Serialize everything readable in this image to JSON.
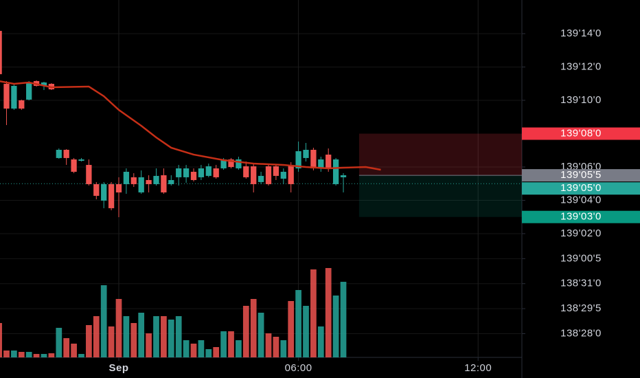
{
  "chart_data": {
    "type": "candlestick",
    "x": [
      -1,
      0,
      1,
      2,
      3,
      4,
      5,
      6,
      7,
      8,
      9,
      10,
      11,
      12,
      13,
      14,
      15,
      16,
      17,
      18,
      19,
      20,
      21,
      22,
      23,
      24,
      25,
      26,
      27,
      28,
      29,
      30,
      31,
      32,
      33,
      34,
      35,
      36,
      37,
      38,
      39,
      40,
      41,
      42,
      43,
      44,
      45
    ],
    "open": [
      139.4427,
      139.3434,
      139.297,
      139.3125,
      139.3138,
      139.3486,
      139.3396,
      139.3434,
      139.2043,
      139.2197,
      139.2017,
      139.1991,
      139.1914,
      139.1553,
      139.1244,
      139.1553,
      139.1553,
      139.1553,
      139.1682,
      139.1398,
      139.163,
      139.1553,
      139.172,
      139.1553,
      139.1682,
      139.1682,
      139.1785,
      139.1682,
      139.1708,
      139.1849,
      139.1849,
      139.2017,
      139.1849,
      139.1888,
      139.1888,
      139.1592,
      139.1888,
      139.1888,
      139.1656,
      139.1914,
      139.1849,
      139.2043,
      139.2197,
      139.1849,
      139.2107,
      139.1553,
      139.1682
    ],
    "high": [
      139.4491,
      139.3486,
      139.3434,
      139.3138,
      139.3486,
      139.3499,
      139.3473,
      139.3447,
      139.2223,
      139.221,
      139.2043,
      139.2043,
      139.2017,
      139.1592,
      139.1592,
      139.1592,
      139.1682,
      139.1849,
      139.1759,
      139.1811,
      139.172,
      139.1849,
      139.1849,
      139.172,
      139.1914,
      139.1914,
      139.1849,
      139.1914,
      139.1939,
      139.1914,
      139.2043,
      139.2043,
      139.2068,
      139.1978,
      139.1939,
      139.1785,
      139.1939,
      139.1914,
      139.1849,
      139.1965,
      139.2352,
      139.2326,
      139.2236,
      139.2068,
      139.2223,
      139.2043,
      139.1759
    ],
    "low": [
      139.3589,
      139.2661,
      139.2945,
      139.2945,
      139.3125,
      139.3383,
      139.3318,
      139.3318,
      139.203,
      139.1914,
      139.1759,
      139.1978,
      139.1527,
      139.1269,
      139.1102,
      139.1063,
      139.0934,
      139.1372,
      139.1501,
      139.1372,
      139.1398,
      139.1527,
      139.1372,
      139.1527,
      139.1527,
      139.1579,
      139.1604,
      139.163,
      139.1682,
      139.1656,
      139.1823,
      139.1849,
      139.1823,
      139.1656,
      139.1398,
      139.1553,
      139.1527,
      139.163,
      139.1553,
      139.1398,
      139.1785,
      139.1978,
      139.1811,
      139.1785,
      139.1785,
      139.1527,
      139.1398
    ],
    "close": [
      139.3615,
      139.297,
      139.3396,
      139.297,
      139.346,
      139.3396,
      139.346,
      139.3331,
      139.2197,
      139.2043,
      139.1785,
      139.2017,
      139.1553,
      139.1334,
      139.1553,
      139.1102,
      139.1398,
      139.1785,
      139.1553,
      139.1682,
      139.1553,
      139.1708,
      139.1398,
      139.163,
      139.1849,
      139.1849,
      139.163,
      139.1849,
      139.1888,
      139.1682,
      139.2017,
      139.1875,
      139.2017,
      139.1682,
      139.1553,
      139.1708,
      139.1553,
      139.1708,
      139.1785,
      139.1553,
      139.2171,
      139.2197,
      139.1849,
      139.2017,
      139.1849,
      139.2017,
      139.172
    ],
    "volume": [
      50,
      10,
      10,
      8,
      8,
      5,
      5,
      6,
      43,
      28,
      20,
      5,
      47,
      60,
      105,
      45,
      85,
      60,
      50,
      65,
      35,
      60,
      60,
      55,
      60,
      25,
      20,
      25,
      12,
      15,
      38,
      38,
      25,
      75,
      85,
      65,
      35,
      30,
      25,
      82,
      98,
      75,
      128,
      45,
      130,
      90,
      110
    ],
    "vlim": [
      0,
      140
    ],
    "up_color": "#26a69a",
    "down_color": "#ef5350",
    "moving_average": {
      "color": "#c62f17",
      "x": [
        -1,
        1,
        3,
        6,
        11,
        13,
        15,
        18,
        20,
        22,
        25,
        29,
        33,
        37,
        40,
        43,
        45,
        48,
        50
      ],
      "values": [
        139.3486,
        139.3434,
        139.346,
        139.337,
        139.3383,
        139.3202,
        139.2945,
        139.2648,
        139.2429,
        139.2236,
        139.2107,
        139.2004,
        139.1939,
        139.1914,
        139.1875,
        139.1849,
        139.1862,
        139.1875,
        139.1823
      ]
    },
    "position": {
      "start": 47.1,
      "stop_color": "#f23645",
      "target_color": "#089981",
      "entry_color": "#787b86",
      "entry": {
        "value": 139.171875,
        "label": "139'05'5"
      },
      "stop": {
        "value": 139.25,
        "label": "139'08'0"
      },
      "target": {
        "value": 139.09375,
        "label": "139'03'0"
      }
    },
    "last_price": {
      "value": 139.15625,
      "label": "139'05'0"
    },
    "xlim": [
      -0.87,
      68.85
    ],
    "xticks": [
      {
        "value": 15,
        "label": "Sep"
      },
      {
        "value": 39,
        "label": "06:00"
      },
      {
        "value": 63,
        "label": "12:00"
      }
    ],
    "ylim": [
      138.8305,
      139.5006
    ],
    "yticks": [
      {
        "value": 139.4375,
        "label": "139'14'0"
      },
      {
        "value": 139.375,
        "label": "139'12'0"
      },
      {
        "value": 139.3125,
        "label": "139'10'0"
      },
      {
        "value": 139.1875,
        "label": "139'06'0"
      },
      {
        "value": 139.125,
        "label": "139'04'0"
      },
      {
        "value": 139.0625,
        "label": "139'02'0"
      },
      {
        "value": 139.015625,
        "label": "139'00'5"
      },
      {
        "value": 138.96875,
        "label": "138'31'0"
      },
      {
        "value": 138.921875,
        "label": "138'29'5"
      },
      {
        "value": 138.875,
        "label": "138'28'0"
      }
    ],
    "grid": true
  }
}
